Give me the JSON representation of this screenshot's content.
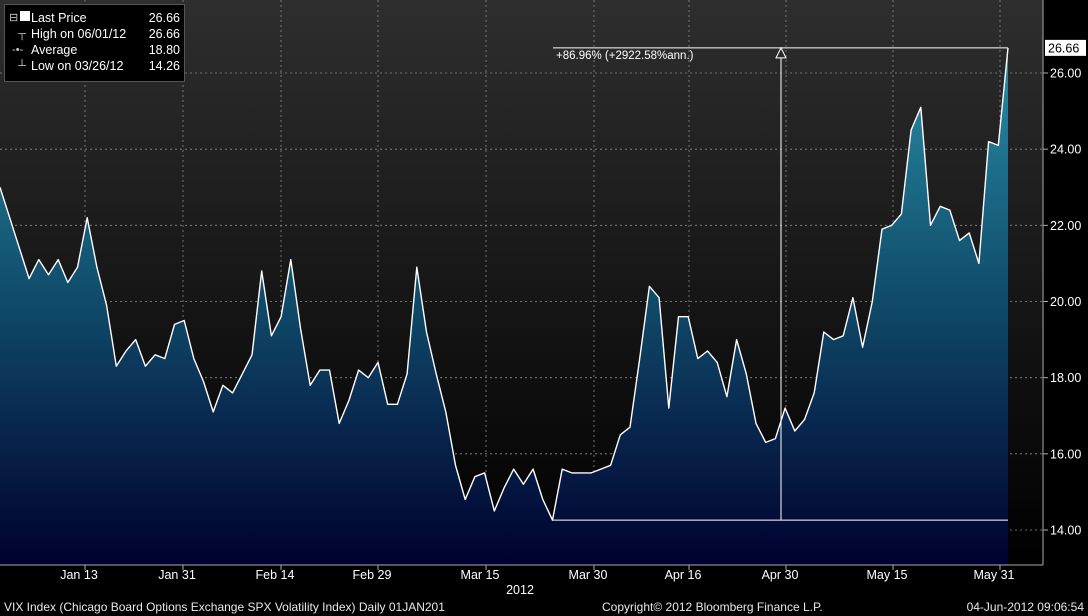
{
  "legend": {
    "items": [
      {
        "label": "Last Price",
        "value": "26.66",
        "icon": "square-icon"
      },
      {
        "label": "High on 06/01/12",
        "value": "26.66",
        "icon": "high-marker-icon"
      },
      {
        "label": "Average",
        "value": "18.80",
        "icon": "average-marker-icon"
      },
      {
        "label": "Low on 03/26/12",
        "value": "14.26",
        "icon": "low-marker-icon"
      }
    ]
  },
  "footer": {
    "description": "VIX Index (Chicago Board Options Exchange SPX Volatility Index)  Daily 01JAN201",
    "copyright": "Copyright© 2012 Bloomberg Finance L.P.",
    "timestamp": "04-Jun-2012 09:06:54"
  },
  "colors": {
    "background_top": "#2b2b2b",
    "background_bottom": "#000000",
    "area_top": "#237c92",
    "area_bottom": "#000033",
    "line": "#ffffff",
    "grid": "#888888"
  },
  "chart_data": {
    "type": "area",
    "ylim": [
      13.0,
      27.6
    ],
    "yticks": [
      14,
      16,
      18,
      20,
      22,
      24,
      26
    ],
    "ytick_labels": [
      "14.00",
      "16.00",
      "18.00",
      "20.00",
      "22.00",
      "24.00",
      "26.00"
    ],
    "last_value_label": "26.66",
    "x_tick_labels": [
      "Jan 13",
      "Jan 31",
      "Feb 14",
      "Feb 29",
      "Mar 15",
      "Mar 30",
      "Apr 16",
      "Apr 30",
      "May 15",
      "May 31"
    ],
    "x_year_label": "2012",
    "grid": true,
    "annotation": {
      "text": "+86.96% (+2922.58%ann.)",
      "from": 14.26,
      "to": 26.66
    },
    "values": [
      23.0,
      22.2,
      21.4,
      20.6,
      21.1,
      20.7,
      21.1,
      20.5,
      20.9,
      22.2,
      20.9,
      19.9,
      18.3,
      18.7,
      19.0,
      18.3,
      18.6,
      18.5,
      19.4,
      19.5,
      18.5,
      17.9,
      17.1,
      17.8,
      17.6,
      18.1,
      18.6,
      20.8,
      19.1,
      19.6,
      21.1,
      19.3,
      17.8,
      18.2,
      18.2,
      16.8,
      17.4,
      18.2,
      18.0,
      18.4,
      17.3,
      17.3,
      18.1,
      20.9,
      19.2,
      18.1,
      17.1,
      15.7,
      14.8,
      15.4,
      15.5,
      14.5,
      15.1,
      15.6,
      15.2,
      15.6,
      14.8,
      14.26,
      15.6,
      15.5,
      15.5,
      15.5,
      15.6,
      15.7,
      16.5,
      16.7,
      18.5,
      20.4,
      20.1,
      17.2,
      19.6,
      19.6,
      18.5,
      18.7,
      18.4,
      17.5,
      19.0,
      18.1,
      16.8,
      16.3,
      16.4,
      17.2,
      16.6,
      16.9,
      17.6,
      19.2,
      19.0,
      19.1,
      20.1,
      18.8,
      20.0,
      21.9,
      22.0,
      22.3,
      24.5,
      25.1,
      22.0,
      22.5,
      22.4,
      21.6,
      21.8,
      21.0,
      24.2,
      24.1,
      26.66
    ]
  }
}
